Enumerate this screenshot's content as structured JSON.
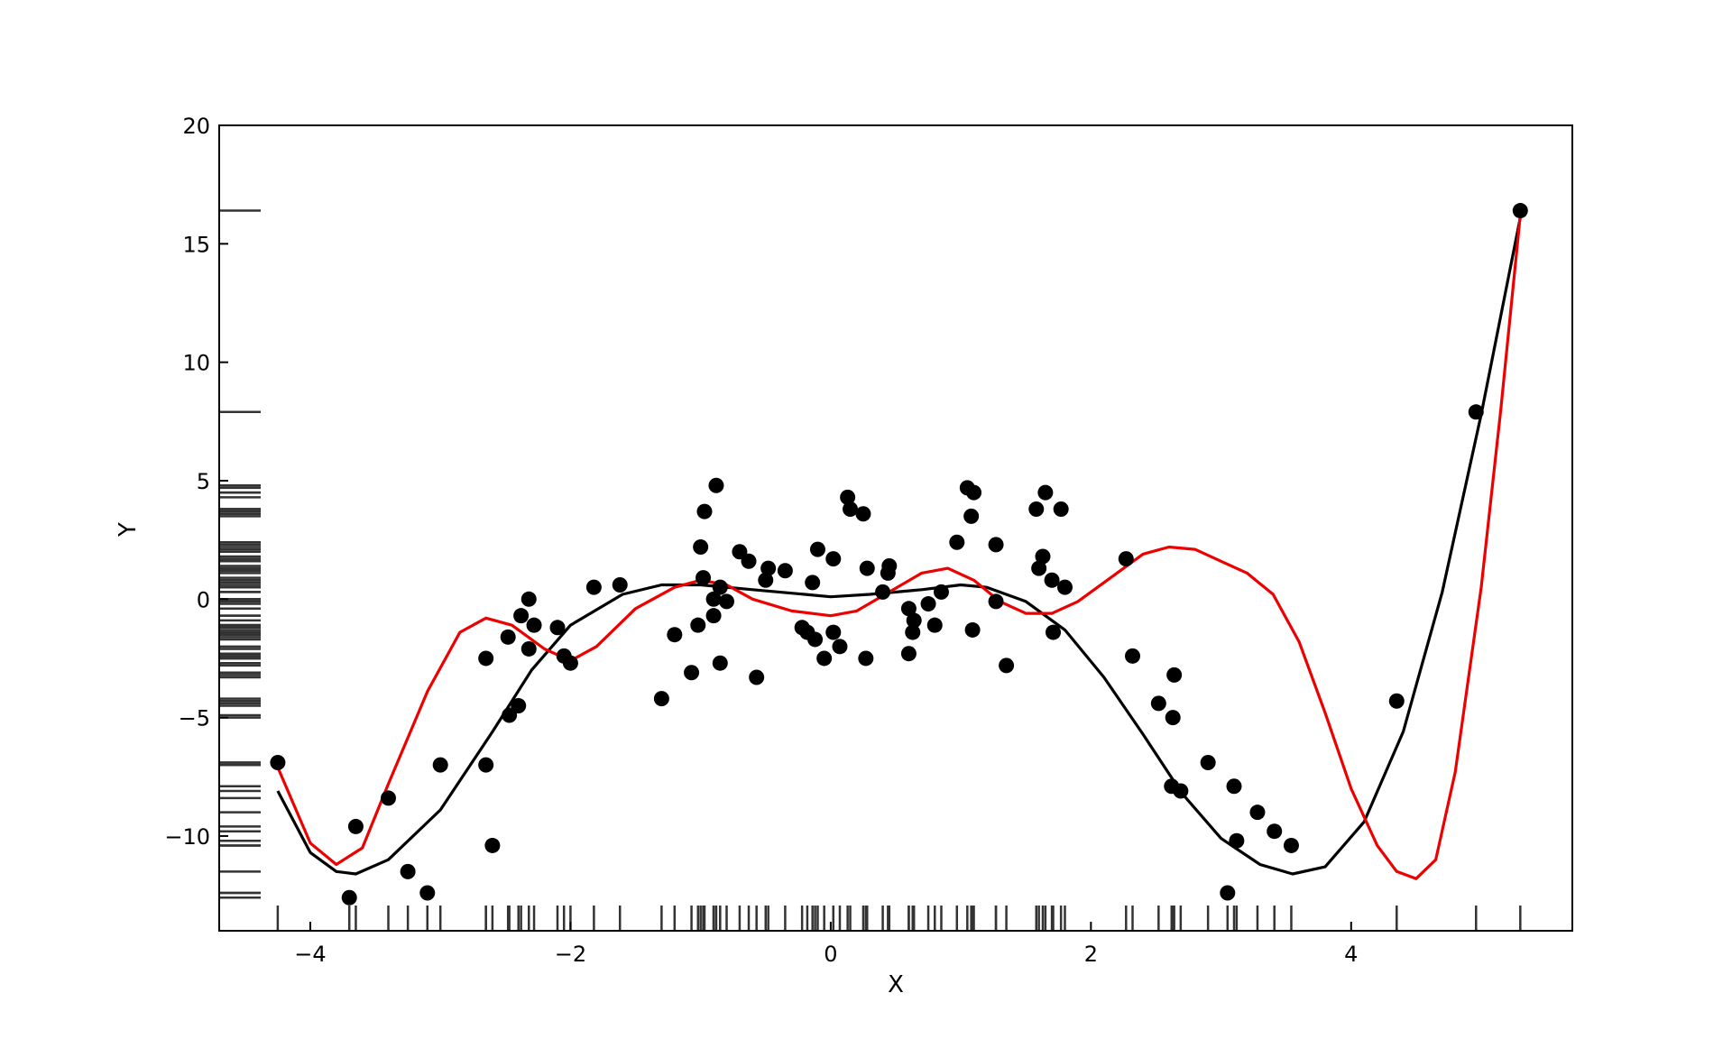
{
  "chart_data": {
    "type": "scatter",
    "title": "",
    "xlabel": "X",
    "ylabel": "Y",
    "xlim": [
      -4.7,
      5.7
    ],
    "ylim": [
      -14,
      20
    ],
    "xticks": [
      -4,
      -2,
      0,
      2,
      4
    ],
    "yticks": [
      -10,
      -5,
      0,
      5,
      10,
      15,
      20
    ],
    "xtick_labels": [
      "−4",
      "−2",
      "0",
      "2",
      "4"
    ],
    "ytick_labels": [
      "−10",
      "−5",
      "0",
      "5",
      "10",
      "15",
      "20"
    ],
    "grid": false,
    "rug_plots": true,
    "colors": {
      "points": "#000000",
      "black_curve": "#000000",
      "red_curve": "#ee0000",
      "rug": "#333333"
    },
    "points": [
      [
        -4.25,
        -6.9
      ],
      [
        -3.7,
        -12.6
      ],
      [
        -3.65,
        -9.6
      ],
      [
        -3.4,
        -8.4
      ],
      [
        -3.25,
        -11.5
      ],
      [
        -3.1,
        -12.4
      ],
      [
        -3.0,
        -7.0
      ],
      [
        -2.65,
        -2.5
      ],
      [
        -2.65,
        -7.0
      ],
      [
        -2.6,
        -10.4
      ],
      [
        -2.48,
        -1.6
      ],
      [
        -2.47,
        -4.9
      ],
      [
        -2.4,
        -4.5
      ],
      [
        -2.38,
        -0.7
      ],
      [
        -2.32,
        -2.1
      ],
      [
        -2.32,
        0.0
      ],
      [
        -2.28,
        -1.1
      ],
      [
        -2.1,
        -1.2
      ],
      [
        -2.05,
        -2.4
      ],
      [
        -2.0,
        -2.7
      ],
      [
        -1.82,
        0.5
      ],
      [
        -1.62,
        0.6
      ],
      [
        -1.3,
        -4.2
      ],
      [
        -1.2,
        -1.5
      ],
      [
        -1.07,
        -3.1
      ],
      [
        -1.02,
        -1.1
      ],
      [
        -1.0,
        2.2
      ],
      [
        -0.98,
        0.9
      ],
      [
        -0.97,
        3.7
      ],
      [
        -0.9,
        -0.7
      ],
      [
        -0.9,
        0.0
      ],
      [
        -0.88,
        4.8
      ],
      [
        -0.85,
        -2.7
      ],
      [
        -0.85,
        0.5
      ],
      [
        -0.8,
        -0.1
      ],
      [
        -0.7,
        2.0
      ],
      [
        -0.63,
        1.6
      ],
      [
        -0.57,
        -3.3
      ],
      [
        -0.5,
        0.8
      ],
      [
        -0.48,
        1.3
      ],
      [
        -0.35,
        1.2
      ],
      [
        -0.22,
        -1.2
      ],
      [
        -0.18,
        -1.4
      ],
      [
        -0.14,
        0.7
      ],
      [
        -0.12,
        -1.7
      ],
      [
        -0.1,
        2.1
      ],
      [
        -0.05,
        -2.5
      ],
      [
        0.02,
        1.7
      ],
      [
        0.02,
        -1.4
      ],
      [
        0.07,
        -2.0
      ],
      [
        0.13,
        4.3
      ],
      [
        0.15,
        3.8
      ],
      [
        0.25,
        3.6
      ],
      [
        0.27,
        -2.5
      ],
      [
        0.28,
        1.3
      ],
      [
        0.4,
        0.3
      ],
      [
        0.44,
        1.1
      ],
      [
        0.45,
        1.4
      ],
      [
        0.6,
        -0.4
      ],
      [
        0.6,
        -2.3
      ],
      [
        0.63,
        -1.4
      ],
      [
        0.64,
        -0.9
      ],
      [
        0.75,
        -0.2
      ],
      [
        0.8,
        -1.1
      ],
      [
        0.85,
        0.3
      ],
      [
        0.97,
        2.4
      ],
      [
        1.05,
        4.7
      ],
      [
        1.08,
        3.5
      ],
      [
        1.09,
        -1.3
      ],
      [
        1.1,
        4.5
      ],
      [
        1.27,
        2.3
      ],
      [
        1.27,
        -0.1
      ],
      [
        1.35,
        -2.8
      ],
      [
        1.58,
        3.8
      ],
      [
        1.6,
        1.3
      ],
      [
        1.63,
        1.8
      ],
      [
        1.65,
        4.5
      ],
      [
        1.7,
        0.8
      ],
      [
        1.71,
        -1.4
      ],
      [
        1.77,
        3.8
      ],
      [
        1.8,
        0.5
      ],
      [
        2.27,
        1.7
      ],
      [
        2.32,
        -2.4
      ],
      [
        2.52,
        -4.4
      ],
      [
        2.62,
        -7.9
      ],
      [
        2.63,
        -5.0
      ],
      [
        2.64,
        -3.2
      ],
      [
        2.69,
        -8.1
      ],
      [
        2.9,
        -6.9
      ],
      [
        3.05,
        -12.4
      ],
      [
        3.1,
        -7.9
      ],
      [
        3.12,
        -10.2
      ],
      [
        3.28,
        -9.0
      ],
      [
        3.41,
        -9.8
      ],
      [
        3.54,
        -10.4
      ],
      [
        4.35,
        -4.3
      ],
      [
        4.96,
        7.9
      ],
      [
        5.3,
        16.4
      ]
    ],
    "series": [
      {
        "color": "#000000",
        "values": [
          [
            -4.25,
            -8.1
          ],
          [
            -4.0,
            -10.7
          ],
          [
            -3.8,
            -11.5
          ],
          [
            -3.65,
            -11.6
          ],
          [
            -3.4,
            -11.0
          ],
          [
            -3.0,
            -8.9
          ],
          [
            -2.6,
            -5.6
          ],
          [
            -2.3,
            -3.0
          ],
          [
            -2.0,
            -1.1
          ],
          [
            -1.6,
            0.2
          ],
          [
            -1.3,
            0.6
          ],
          [
            -1.0,
            0.6
          ],
          [
            -0.6,
            0.4
          ],
          [
            -0.2,
            0.2
          ],
          [
            0.0,
            0.1
          ],
          [
            0.3,
            0.2
          ],
          [
            0.7,
            0.4
          ],
          [
            1.0,
            0.6
          ],
          [
            1.2,
            0.5
          ],
          [
            1.5,
            -0.1
          ],
          [
            1.8,
            -1.3
          ],
          [
            2.1,
            -3.3
          ],
          [
            2.4,
            -5.7
          ],
          [
            2.7,
            -8.2
          ],
          [
            3.0,
            -10.1
          ],
          [
            3.3,
            -11.2
          ],
          [
            3.55,
            -11.6
          ],
          [
            3.8,
            -11.3
          ],
          [
            4.1,
            -9.4
          ],
          [
            4.4,
            -5.6
          ],
          [
            4.7,
            0.3
          ],
          [
            5.0,
            7.8
          ],
          [
            5.3,
            16.1
          ]
        ]
      },
      {
        "color": "#ee0000",
        "values": [
          [
            -4.25,
            -7.1
          ],
          [
            -4.0,
            -10.3
          ],
          [
            -3.8,
            -11.2
          ],
          [
            -3.6,
            -10.5
          ],
          [
            -3.4,
            -7.8
          ],
          [
            -3.1,
            -3.9
          ],
          [
            -2.85,
            -1.4
          ],
          [
            -2.65,
            -0.8
          ],
          [
            -2.45,
            -1.1
          ],
          [
            -2.2,
            -2.1
          ],
          [
            -2.0,
            -2.6
          ],
          [
            -1.8,
            -2.0
          ],
          [
            -1.5,
            -0.4
          ],
          [
            -1.2,
            0.5
          ],
          [
            -1.0,
            0.8
          ],
          [
            -0.8,
            0.6
          ],
          [
            -0.6,
            0.0
          ],
          [
            -0.3,
            -0.5
          ],
          [
            0.0,
            -0.7
          ],
          [
            0.2,
            -0.5
          ],
          [
            0.45,
            0.3
          ],
          [
            0.7,
            1.1
          ],
          [
            0.9,
            1.3
          ],
          [
            1.1,
            0.8
          ],
          [
            1.3,
            -0.1
          ],
          [
            1.5,
            -0.6
          ],
          [
            1.7,
            -0.6
          ],
          [
            1.9,
            -0.1
          ],
          [
            2.15,
            0.9
          ],
          [
            2.4,
            1.9
          ],
          [
            2.6,
            2.2
          ],
          [
            2.8,
            2.1
          ],
          [
            3.0,
            1.6
          ],
          [
            3.2,
            1.1
          ],
          [
            3.4,
            0.2
          ],
          [
            3.6,
            -1.8
          ],
          [
            3.8,
            -4.8
          ],
          [
            4.0,
            -8.0
          ],
          [
            4.2,
            -10.4
          ],
          [
            4.35,
            -11.5
          ],
          [
            4.5,
            -11.8
          ],
          [
            4.65,
            -11.0
          ],
          [
            4.8,
            -7.3
          ],
          [
            5.0,
            0.5
          ],
          [
            5.15,
            8.0
          ],
          [
            5.3,
            16.2
          ]
        ]
      }
    ]
  }
}
